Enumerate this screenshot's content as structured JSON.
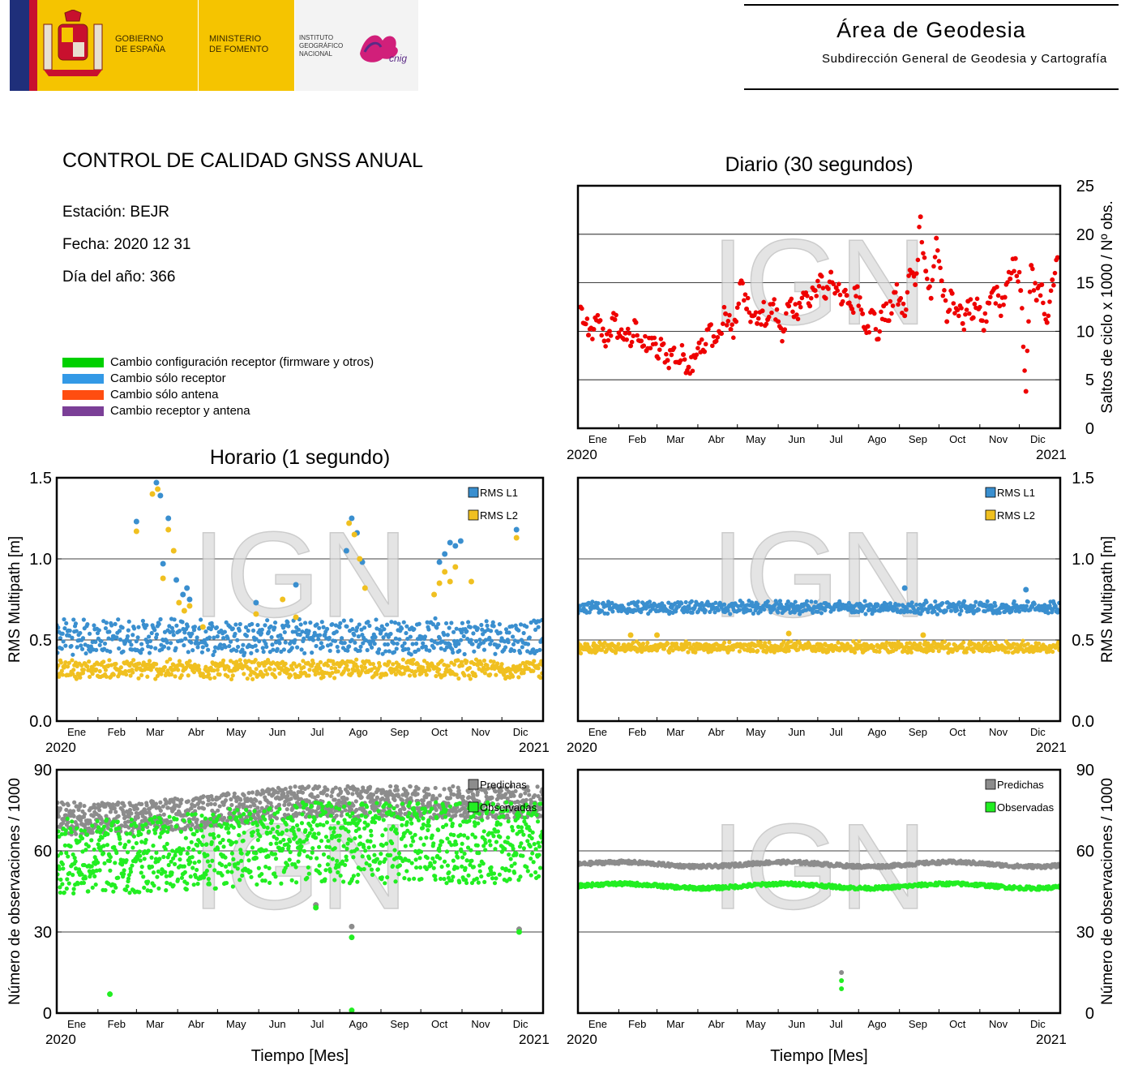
{
  "header": {
    "gov_line1": "GOBIERNO",
    "gov_line2": "DE ESPAÑA",
    "min_line1": "MINISTERIO",
    "min_line2": "DE FOMENTO",
    "ign_line1": "INSTITUTO",
    "ign_line2": "GEOGRÁFICO",
    "ign_line3": "NACIONAL",
    "cnig_logo_text": "cnig",
    "area_title": "Área de Geodesia",
    "area_subtitle": "Subdirección General de Geodesia y Cartografía"
  },
  "report": {
    "title": "CONTROL DE CALIDAD GNSS ANUAL",
    "station": "Estación: BEJR",
    "date": "Fecha: 2020 12 31",
    "doy": "Día del año: 366"
  },
  "legend": [
    {
      "label": "Cambio configuración receptor (firmware y otros)",
      "color": "#00d000"
    },
    {
      "label": "Cambio sólo receptor",
      "color": "#3399e6"
    },
    {
      "label": "Cambio sólo antena",
      "color": "#ff4d10"
    },
    {
      "label": "Cambio receptor y antena",
      "color": "#7b3f97"
    }
  ],
  "watermark": "IGN",
  "colors": {
    "rms_l1": "#3a8fcf",
    "rms_l2": "#f0c020",
    "predicted": "#8c8c8c",
    "observed": "#22ee22",
    "cycle_slips": "#ee0000"
  },
  "axis_common": {
    "months": [
      "Ene",
      "Feb",
      "Mar",
      "Abr",
      "May",
      "Jun",
      "Jul",
      "Ago",
      "Sep",
      "Oct",
      "Nov",
      "Dic"
    ],
    "year_start": "2020",
    "year_end": "2021",
    "xlabel": "Tiempo [Mes]"
  },
  "chart_data": [
    {
      "id": "daily-slips",
      "type": "scatter",
      "title": "Diario (30 segundos)",
      "ylabel": "Saltos de ciclo x 1000 / Nº obs.",
      "ylim": [
        0,
        25
      ],
      "yticks": [
        0,
        5,
        10,
        15,
        20,
        25
      ],
      "grid": true,
      "x_unit": "day of year 2020",
      "series": [
        {
          "key": "slips",
          "color": "#ee0000",
          "points": [
            [
              2,
              12.5
            ],
            [
              5,
              10.8
            ],
            [
              8,
              9.6
            ],
            [
              12,
              10.2
            ],
            [
              16,
              11.0
            ],
            [
              20,
              9.0
            ],
            [
              24,
              10.0
            ],
            [
              28,
              11.2
            ],
            [
              32,
              9.5
            ],
            [
              36,
              9.8
            ],
            [
              40,
              8.5
            ],
            [
              44,
              10.9
            ],
            [
              48,
              9.0
            ],
            [
              52,
              8.0
            ],
            [
              56,
              9.3
            ],
            [
              60,
              7.4
            ],
            [
              64,
              8.6
            ],
            [
              68,
              7.0
            ],
            [
              72,
              8.1
            ],
            [
              76,
              6.8
            ],
            [
              80,
              7.6
            ],
            [
              84,
              6.3
            ],
            [
              88,
              7.5
            ],
            [
              92,
              8.8
            ],
            [
              96,
              7.9
            ],
            [
              100,
              10.6
            ],
            [
              104,
              8.9
            ],
            [
              108,
              9.8
            ],
            [
              112,
              11.8
            ],
            [
              116,
              10.2
            ],
            [
              120,
              11.0
            ],
            [
              124,
              15.2
            ],
            [
              128,
              12.3
            ],
            [
              132,
              11.6
            ],
            [
              136,
              10.8
            ],
            [
              140,
              12.1
            ],
            [
              144,
              11.2
            ],
            [
              148,
              12.8
            ],
            [
              152,
              11.0
            ],
            [
              156,
              10.0
            ],
            [
              160,
              12.6
            ],
            [
              164,
              11.5
            ],
            [
              168,
              12.9
            ],
            [
              172,
              13.8
            ],
            [
              176,
              12.6
            ],
            [
              180,
              14.2
            ],
            [
              184,
              15.8
            ],
            [
              188,
              13.4
            ],
            [
              192,
              16.1
            ],
            [
              196,
              14.5
            ],
            [
              200,
              12.8
            ],
            [
              204,
              13.7
            ],
            [
              208,
              12.3
            ],
            [
              212,
              14.6
            ],
            [
              216,
              11.8
            ],
            [
              220,
              10.5
            ],
            [
              224,
              12.0
            ],
            [
              228,
              9.2
            ],
            [
              232,
              12.6
            ],
            [
              236,
              11.1
            ],
            [
              240,
              14.0
            ],
            [
              244,
              13.2
            ],
            [
              248,
              11.6
            ],
            [
              252,
              16.3
            ],
            [
              256,
              14.8
            ],
            [
              260,
              21.8
            ],
            [
              264,
              16.2
            ],
            [
              268,
              13.4
            ],
            [
              272,
              19.6
            ],
            [
              276,
              15.2
            ],
            [
              280,
              11.0
            ],
            [
              284,
              13.9
            ],
            [
              288,
              12.2
            ],
            [
              292,
              10.8
            ],
            [
              296,
              13.1
            ],
            [
              300,
              11.4
            ],
            [
              304,
              12.3
            ],
            [
              308,
              10.1
            ],
            [
              312,
              12.9
            ],
            [
              316,
              14.4
            ],
            [
              320,
              12.6
            ],
            [
              324,
              13.5
            ],
            [
              328,
              15.4
            ],
            [
              332,
              17.5
            ],
            [
              336,
              14.2
            ],
            [
              340,
              3.8
            ],
            [
              344,
              16.8
            ],
            [
              348,
              13.2
            ],
            [
              352,
              14.8
            ],
            [
              356,
              10.9
            ],
            [
              360,
              15.3
            ],
            [
              364,
              17.6
            ]
          ]
        }
      ]
    },
    {
      "id": "hourly-rms",
      "type": "scatter",
      "title": "Horario (1 segundo)",
      "ylabel": "RMS Multipath [m]",
      "ylim": [
        0,
        1.5
      ],
      "yticks": [
        "0.0",
        "0.5",
        "1.0",
        "1.5"
      ],
      "grid": true,
      "legend_position": "top-right",
      "x_unit": "day of year 2020",
      "series": [
        {
          "name": "RMS L1",
          "color": "#3a8fcf",
          "band": [
            0.42,
            0.62
          ],
          "outliers": [
            [
              60,
              1.23
            ],
            [
              75,
              1.47
            ],
            [
              78,
              1.39
            ],
            [
              80,
              0.97
            ],
            [
              84,
              1.25
            ],
            [
              90,
              0.87
            ],
            [
              95,
              0.78
            ],
            [
              98,
              0.82
            ],
            [
              100,
              0.75
            ],
            [
              150,
              0.73
            ],
            [
              180,
              0.84
            ],
            [
              218,
              1.05
            ],
            [
              222,
              1.25
            ],
            [
              226,
              1.16
            ],
            [
              230,
              0.98
            ],
            [
              288,
              0.98
            ],
            [
              292,
              1.03
            ],
            [
              296,
              1.1
            ],
            [
              300,
              1.08
            ],
            [
              304,
              1.11
            ],
            [
              346,
              1.18
            ]
          ]
        },
        {
          "name": "RMS L2",
          "color": "#f0c020",
          "band": [
            0.27,
            0.37
          ],
          "outliers": [
            [
              60,
              1.17
            ],
            [
              72,
              1.4
            ],
            [
              76,
              1.43
            ],
            [
              80,
              0.88
            ],
            [
              84,
              1.18
            ],
            [
              88,
              1.05
            ],
            [
              92,
              0.73
            ],
            [
              96,
              0.68
            ],
            [
              100,
              0.71
            ],
            [
              110,
              0.58
            ],
            [
              150,
              0.66
            ],
            [
              170,
              0.75
            ],
            [
              180,
              0.64
            ],
            [
              220,
              1.22
            ],
            [
              224,
              1.15
            ],
            [
              228,
              1.0
            ],
            [
              232,
              0.82
            ],
            [
              284,
              0.78
            ],
            [
              288,
              0.85
            ],
            [
              292,
              0.92
            ],
            [
              296,
              0.86
            ],
            [
              300,
              0.95
            ],
            [
              312,
              0.86
            ],
            [
              346,
              1.13
            ]
          ]
        }
      ]
    },
    {
      "id": "daily-rms",
      "type": "scatter",
      "title": "",
      "ylabel": "RMS Multipath [m]",
      "ylim": [
        0,
        1.5
      ],
      "yticks": [
        "0.0",
        "0.5",
        "1.0",
        "1.5"
      ],
      "grid": true,
      "legend_position": "top-right",
      "x_unit": "day of year 2020",
      "series": [
        {
          "name": "RMS L1",
          "color": "#3a8fcf",
          "band": [
            0.67,
            0.73
          ],
          "outliers": [
            [
              248,
              0.82
            ],
            [
              340,
              0.81
            ]
          ]
        },
        {
          "name": "RMS L2",
          "color": "#f0c020",
          "band": [
            0.43,
            0.48
          ],
          "outliers": [
            [
              40,
              0.53
            ],
            [
              60,
              0.53
            ],
            [
              160,
              0.54
            ],
            [
              262,
              0.53
            ]
          ]
        }
      ]
    },
    {
      "id": "hourly-obs",
      "type": "scatter",
      "title": "",
      "xlabel": "Tiempo [Mes]",
      "ylabel": "Número de observaciones / 1000",
      "ylim": [
        0,
        90
      ],
      "yticks": [
        0,
        30,
        60,
        90
      ],
      "grid": true,
      "legend_position": "top-right",
      "x_unit": "day of year 2020",
      "series": [
        {
          "name": "Predichas",
          "color": "#8c8c8c",
          "band_start": [
            66,
            78
          ],
          "band_end": [
            72,
            84
          ],
          "outliers": [
            [
              195,
              40
            ],
            [
              222,
              32
            ],
            [
              348,
              31
            ]
          ]
        },
        {
          "name": "Observadas",
          "color": "#22ee22",
          "band_start": [
            44,
            72
          ],
          "band_end": [
            48,
            78
          ],
          "outliers": [
            [
              40,
              7
            ],
            [
              195,
              39
            ],
            [
              222,
              28
            ],
            [
              222,
              1
            ],
            [
              348,
              30
            ]
          ]
        }
      ]
    },
    {
      "id": "daily-obs",
      "type": "scatter",
      "title": "",
      "xlabel": "Tiempo [Mes]",
      "ylabel": "Número de observaciones / 1000",
      "ylim": [
        0,
        90
      ],
      "yticks": [
        0,
        30,
        60,
        90
      ],
      "grid": true,
      "legend_position": "top-right",
      "x_unit": "day of year 2020",
      "series": [
        {
          "name": "Predichas",
          "color": "#8c8c8c",
          "level": 55,
          "dips": [
            [
              200,
              15
            ]
          ]
        },
        {
          "name": "Observadas",
          "color": "#22ee22",
          "level": 47,
          "dips": [
            [
              200,
              12
            ],
            [
              200,
              9
            ]
          ]
        }
      ]
    }
  ]
}
